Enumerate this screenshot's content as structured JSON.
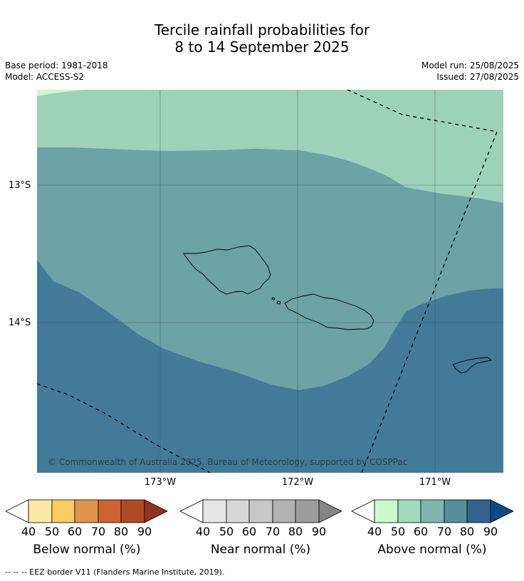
{
  "title_line1": "Tercile rainfall probabilities for",
  "title_line2": "8 to 14 September 2025",
  "base_period": "Base period: 1981-2018",
  "model": "Model: ACCESS-S2",
  "model_run": "Model run: 25/08/2025",
  "issued": "Issued: 27/08/2025",
  "lat_labels": [
    "13°S",
    "14°S"
  ],
  "lon_labels": [
    "173°W",
    "172°W",
    "171°W"
  ],
  "copyright": "© Commonwealth of Australia 2025, Bureau of Meteorology, supported by COSPPac",
  "colorbars": [
    {
      "label": "Below normal (%)",
      "ticks": [
        "40",
        "50",
        "60",
        "70",
        "80",
        "90"
      ],
      "colors": [
        "#ffffff",
        "#fde9a2",
        "#fccb66",
        "#e0954a",
        "#cd6433",
        "#b04a26",
        "#903321"
      ]
    },
    {
      "label": "Near normal (%)",
      "ticks": [
        "40",
        "50",
        "60",
        "70",
        "80",
        "90"
      ],
      "colors": [
        "#ffffff",
        "#e6e6e6",
        "#d7d7d7",
        "#c7c7c7",
        "#b3b3b3",
        "#9c9c9c",
        "#858585"
      ]
    },
    {
      "label": "Above normal (%)",
      "ticks": [
        "40",
        "50",
        "60",
        "70",
        "80",
        "90"
      ],
      "colors": [
        "#ffffff",
        "#ccf9cc",
        "#a3d9be",
        "#80b6ab",
        "#588e9b",
        "#34638c",
        "#0d4a85"
      ]
    }
  ],
  "map_fill_colors": {
    "above_40_50": "#ccf9cc",
    "above_50_60": "#9ed1ba",
    "above_60_70": "#6da2a6",
    "above_70_80": "#427a98"
  },
  "footer": "--  --  -- EEZ border V11 (Flanders Marine Institute, 2019)."
}
